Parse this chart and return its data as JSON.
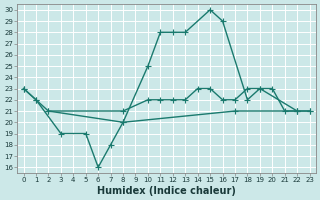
{
  "xlabel": "Humidex (Indice chaleur)",
  "x_ticks": [
    0,
    1,
    2,
    3,
    4,
    5,
    6,
    7,
    8,
    9,
    10,
    11,
    12,
    13,
    14,
    15,
    16,
    17,
    18,
    19,
    20,
    21,
    22,
    23
  ],
  "xlim": [
    -0.5,
    23.5
  ],
  "ylim": [
    15.5,
    30.5
  ],
  "y_ticks": [
    16,
    17,
    18,
    19,
    20,
    21,
    22,
    23,
    24,
    25,
    26,
    27,
    28,
    29,
    30
  ],
  "bg_color": "#cce8e8",
  "grid_color": "#ffffff",
  "line_color": "#1a7a6e",
  "curve1_x": [
    0,
    1,
    3,
    5,
    6,
    7,
    8,
    10,
    11,
    12,
    13,
    15,
    16,
    18,
    19,
    22
  ],
  "curve1_y": [
    23,
    22,
    19,
    19,
    16,
    18,
    20,
    25,
    28,
    28,
    28,
    30,
    29,
    22,
    23,
    21
  ],
  "curve2_x": [
    0,
    1,
    2,
    8,
    10,
    11,
    12,
    13,
    14,
    15,
    16,
    17,
    18,
    19,
    20,
    21,
    22,
    23
  ],
  "curve2_y": [
    23,
    22,
    21,
    21,
    22,
    22,
    22,
    22,
    23,
    23,
    22,
    22,
    23,
    23,
    23,
    21,
    21,
    21
  ],
  "curve3_x": [
    2,
    8,
    17,
    22,
    23
  ],
  "curve3_y": [
    21,
    20,
    21,
    21,
    21
  ],
  "line_width": 1.0,
  "marker_size": 4,
  "xlabel_fontsize": 7,
  "tick_fontsize": 5
}
